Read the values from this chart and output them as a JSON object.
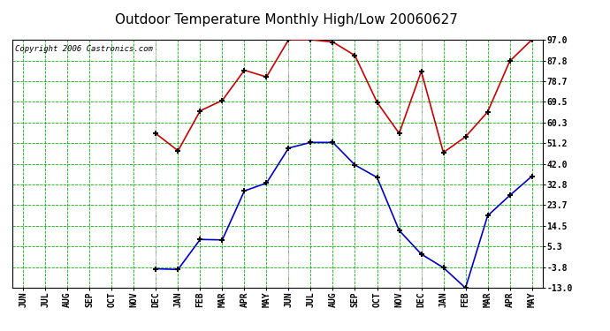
{
  "title": "Outdoor Temperature Monthly High/Low 20060627",
  "copyright": "Copyright 2006 Castronics.com",
  "x_labels": [
    "JUN",
    "JUL",
    "AUG",
    "SEP",
    "OCT",
    "NOV",
    "DEC",
    "JAN",
    "FEB",
    "MAR",
    "APR",
    "MAY",
    "JUN",
    "JUL",
    "AUG",
    "SEP",
    "OCT",
    "NOV",
    "DEC",
    "JAN",
    "FEB",
    "MAR",
    "APR",
    "MAY"
  ],
  "high_values": [
    null,
    null,
    null,
    null,
    null,
    null,
    55.4,
    47.8,
    65.5,
    70.1,
    83.5,
    80.5,
    97.0,
    97.0,
    96.0,
    90.0,
    69.3,
    55.5,
    83.0,
    47.0,
    54.0,
    65.0,
    87.5,
    97.0
  ],
  "low_values": [
    null,
    null,
    null,
    null,
    null,
    null,
    -4.5,
    -4.8,
    8.5,
    8.3,
    30.0,
    33.5,
    49.0,
    51.5,
    51.5,
    41.5,
    36.0,
    12.5,
    2.0,
    -4.0,
    -13.0,
    19.0,
    28.0,
    36.5
  ],
  "y_ticks": [
    -13.0,
    -3.8,
    5.3,
    14.5,
    23.7,
    32.8,
    42.0,
    51.2,
    60.3,
    69.5,
    78.7,
    87.8,
    97.0
  ],
  "y_min": -13.0,
  "y_max": 97.0,
  "high_color": "#cc0000",
  "low_color": "#0000cc",
  "bg_color": "#ffffff",
  "plot_bg_color": "#ffffff",
  "grid_color_green": "#00bb00",
  "grid_color_grey": "#bbbbbb",
  "title_fontsize": 11,
  "copyright_fontsize": 6.5
}
